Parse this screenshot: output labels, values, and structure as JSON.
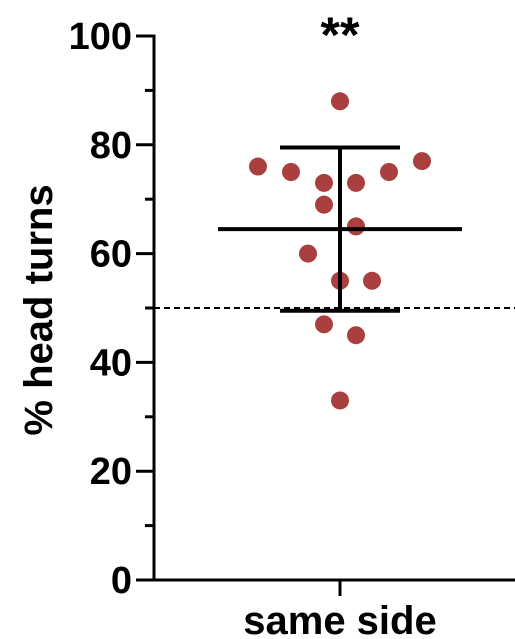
{
  "chart_data": {
    "type": "scatter",
    "title": "",
    "xlabel": "",
    "ylabel": "% head turns",
    "ylim": [
      0,
      100
    ],
    "y_ticks": [
      "0",
      "20",
      "40",
      "60",
      "80",
      "100"
    ],
    "categories": [
      "same side"
    ],
    "points_y": [
      88,
      76,
      75,
      73,
      73,
      75,
      77,
      69,
      65,
      60,
      55,
      55,
      47,
      45,
      33
    ],
    "mean": 64.5,
    "error_upper": 79.5,
    "error_lower": 49.5,
    "reference_line": 50,
    "significance_label": "**",
    "grid": false,
    "colors": {
      "points": "#a9403f",
      "axes": "#000000"
    }
  }
}
